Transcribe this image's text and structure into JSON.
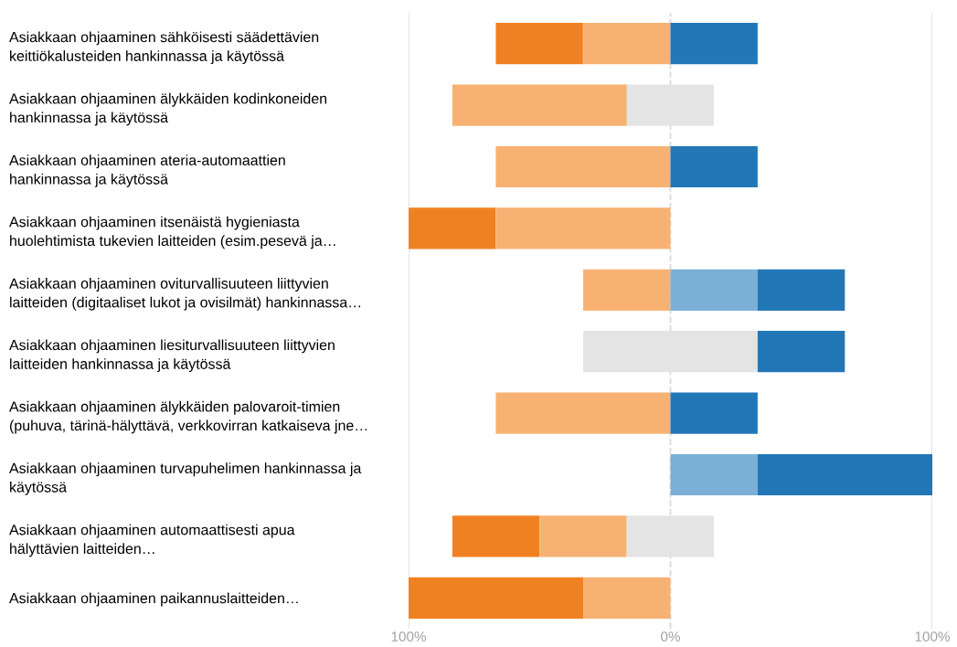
{
  "chart_data": {
    "type": "bar",
    "orientation": "horizontal",
    "categories": [
      "Asiakkaan ohjaaminen sähköisesti säädettävien\nkeittiökalusteiden hankinnassa ja käytössä",
      "Asiakkaan ohjaaminen älykkäiden kodinkoneiden\nhankinnassa ja käytössä",
      "Asiakkaan ohjaaminen ateria-automaattien\nhankinnassa ja käytössä",
      "Asiakkaan ohjaaminen itsenäistä hygieniasta\nhuolehtimista tukevien laitteiden (esim.pesevä ja…",
      "Asiakkaan ohjaaminen oviturvallisuuteen liittyvien\nlaitteiden (digitaaliset lukot ja ovisilmät) hankinnassa…",
      "Asiakkaan ohjaaminen liesiturvallisuuteen liittyvien\nlaitteiden hankinnassa ja käytössä",
      "Asiakkaan ohjaaminen älykkäiden palovaroit-timien\n(puhuva, tärinä-hälyttävä, verkkovirran katkaiseva jne…",
      "Asiakkaan ohjaaminen turvapuhelimen hankinnassa ja\nkäytössä",
      "Asiakkaan ohjaaminen automaattisesti apua\nhälyttävien laitteiden…",
      "Asiakkaan ohjaaminen paikannuslaitteiden…"
    ],
    "series": [
      {
        "color": "#f08122",
        "values": [
          33.3,
          null,
          null,
          33.3,
          null,
          null,
          null,
          null,
          33.3,
          66.7
        ],
        "base": [
          -66.7,
          null,
          null,
          -100,
          null,
          null,
          null,
          null,
          -83.3,
          -100
        ]
      },
      {
        "color": "#f7b273",
        "values": [
          33.3,
          66.7,
          66.7,
          66.7,
          33.3,
          null,
          66.7,
          null,
          33.3,
          33.3
        ],
        "base": [
          -33.3,
          -83.3,
          -66.7,
          -66.7,
          -33.3,
          null,
          -66.7,
          null,
          -50,
          -33.3
        ]
      },
      {
        "color": "#e4e4e4",
        "values": [
          null,
          33.3,
          null,
          null,
          null,
          66.7,
          null,
          null,
          33.3,
          null
        ],
        "base": [
          null,
          -16.7,
          null,
          null,
          null,
          -33.3,
          null,
          null,
          -16.7,
          null
        ]
      },
      {
        "color": "#7bafd6",
        "values": [
          null,
          null,
          null,
          null,
          33.3,
          null,
          null,
          33.3,
          null,
          null
        ],
        "base": [
          null,
          null,
          null,
          null,
          0,
          null,
          null,
          0,
          null,
          null
        ]
      },
      {
        "color": "#2277b7",
        "values": [
          33.3,
          null,
          33.3,
          null,
          33.3,
          33.3,
          33.3,
          66.7,
          null,
          null
        ],
        "base": [
          0,
          null,
          0,
          null,
          33.3,
          33.3,
          0,
          33.3,
          null,
          null
        ]
      }
    ],
    "xlim": [
      -100,
      100
    ],
    "xticks": [
      {
        "value": -100,
        "label": "100%"
      },
      {
        "value": 0,
        "label": "0%"
      },
      {
        "value": 100,
        "label": "100%"
      }
    ],
    "ref_lines": [
      {
        "axis": "x",
        "value": -100,
        "line_style": "solid",
        "color": "#e0e0e0"
      },
      {
        "axis": "x",
        "value": 0,
        "line_style": "dashed",
        "color": "#d9d9d9"
      },
      {
        "axis": "x",
        "value": 100,
        "line_style": "solid",
        "color": "#e0e0e0"
      }
    ]
  }
}
